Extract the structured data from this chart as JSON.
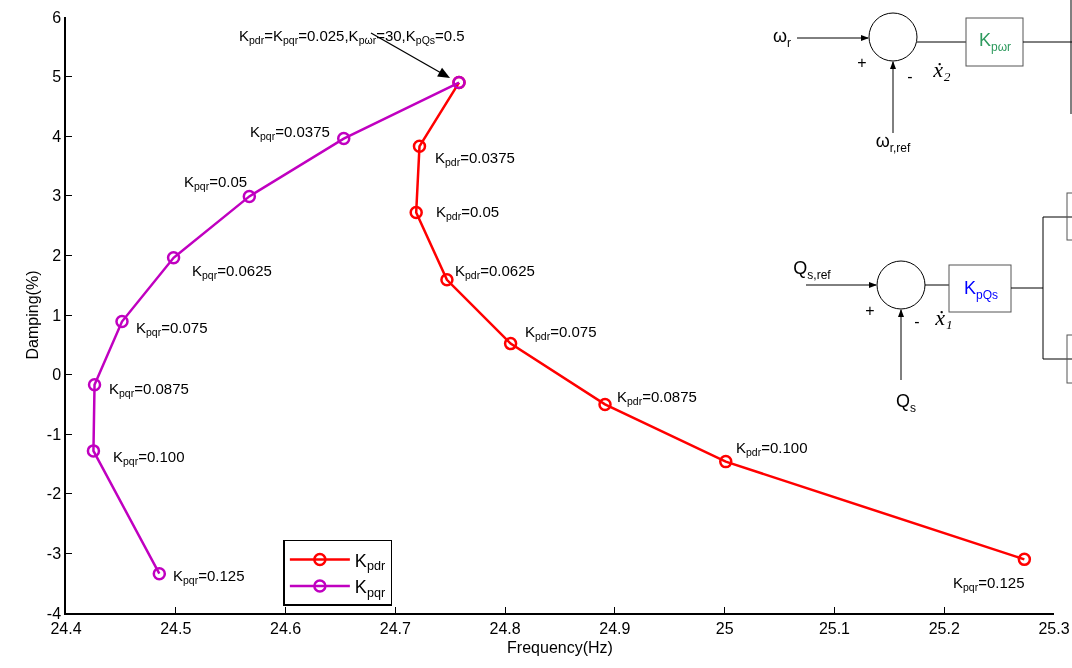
{
  "chart_data": {
    "type": "line",
    "xlabel": "Frequency(Hz)",
    "ylabel": "Damping(%)",
    "xlim": [
      24.4,
      25.3
    ],
    "xticks": [
      24.4,
      24.5,
      24.6,
      24.7,
      24.8,
      24.9,
      25,
      25.1,
      25.2,
      25.3
    ],
    "ylim": [
      -4,
      6
    ],
    "yticks": [
      -4,
      -3,
      -2,
      -1,
      0,
      1,
      2,
      3,
      4,
      5,
      6
    ],
    "grid": false,
    "legend": "bottom",
    "marker": "circle",
    "line_style": "solid",
    "series": [
      {
        "name": "K$_{pdr}$",
        "color": "#ff0000",
        "x": [
          24.758,
          24.722,
          24.719,
          24.747,
          24.805,
          24.891,
          25.001,
          25.273
        ],
        "values": [
          4.9,
          3.83,
          2.72,
          1.59,
          0.52,
          -0.5,
          -1.46,
          -3.1
        ]
      },
      {
        "name": "K$_{pqr}$",
        "color": "#c000c0",
        "x": [
          24.758,
          24.653,
          24.567,
          24.498,
          24.451,
          24.426,
          24.425,
          24.485
        ],
        "values": [
          4.9,
          3.96,
          2.99,
          1.96,
          0.89,
          -0.17,
          -1.28,
          -3.34
        ]
      }
    ],
    "annotations": [
      "K$_{pdr}$=K$_{pqr}$=0.025,K$_{pωr}$=30,K$_{pQs}$=0.5",
      {
        "text": "K$_{pqr}$=0.0375",
        "x": 24.653,
        "y": 3.96
      },
      {
        "text": "K$_{pqr}$=0.05",
        "x": 24.567,
        "y": 2.99
      },
      {
        "text": "K$_{pqr}$=0.0625",
        "x": 24.498,
        "y": 1.96
      },
      {
        "text": "K$_{pqr}$=0.075",
        "x": 24.451,
        "y": 0.89
      },
      {
        "text": "K$_{pqr}$=0.0875",
        "x": 24.426,
        "y": -0.17
      },
      {
        "text": "K$_{pqr}$=0.100",
        "x": 24.425,
        "y": -1.28
      },
      {
        "text": "K$_{pqr}$=0.125",
        "x": 24.485,
        "y": -3.34
      },
      {
        "text": "K$_{pdr}$=0.0375",
        "x": 24.722,
        "y": 3.83
      },
      {
        "text": "K$_{pdr}$=0.05",
        "x": 24.719,
        "y": 2.72
      },
      {
        "text": "K$_{pdr}$=0.0625",
        "x": 24.747,
        "y": 1.59
      },
      {
        "text": "K$_{pdr}$=0.075",
        "x": 24.805,
        "y": 0.52
      },
      {
        "text": "K$_{pdr}$=0.0875",
        "x": 24.891,
        "y": -0.5
      },
      {
        "text": "K$_{pdr}$=0.100",
        "x": 25.001,
        "y": -1.46
      },
      {
        "text": "K$_{pqr}$=0.125",
        "x": 25.273,
        "y": -3.1
      },
      "ω$_{r}$",
      "+",
      "-",
      "ẋ₂",
      "K$_{pωr}$",
      "ω$_{r,ref}$",
      "Q$_{s,ref}$",
      "+",
      "-",
      "ẋ₁",
      "K$_{pQs}$",
      "Q$_{s}$"
    ]
  }
}
